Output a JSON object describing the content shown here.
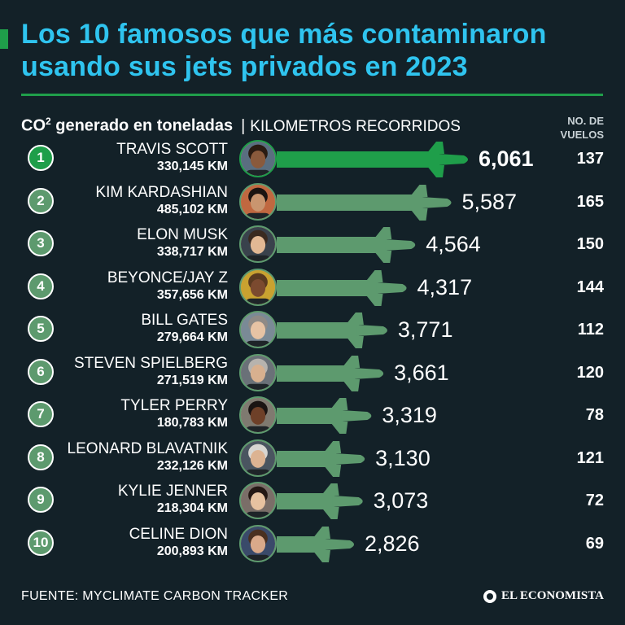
{
  "header": {
    "title": "Los 10 famosos que más contaminaron usando sus jets privados en 2023",
    "subtitle_co2_prefix": "CO",
    "subtitle_co2_sup": "2",
    "subtitle_co2_suffix": " generado en toneladas",
    "subtitle_separator": "|",
    "subtitle_km": "KILOMETROS RECORRIDOS",
    "flights_header_line1": "NO. DE",
    "flights_header_line2": "VUELOS"
  },
  "footer": {
    "source": "FUENTE: MYCLIMATE CARBON TRACKER",
    "logo": "EL ECONOMISTA"
  },
  "colors": {
    "background": "#132128",
    "title": "#2fc4ef",
    "accent_green": "#1f9e4a",
    "bar_green": "#5d9a6e",
    "text": "#ffffff"
  },
  "chart_data": {
    "type": "bar",
    "orientation": "horizontal",
    "title": "Los 10 famosos que más contaminaron usando sus jets privados en 2023",
    "value_label": "CO2 generado en toneladas",
    "secondary_label": "KILOMETROS RECORRIDOS",
    "tertiary_label": "NO. DE VUELOS",
    "xlim": [
      0,
      6061
    ],
    "rows": [
      {
        "rank": "1",
        "name": "TRAVIS SCOTT",
        "km": "330,145 KM",
        "co2": 6061,
        "co2_label": "6,061",
        "flights": "137"
      },
      {
        "rank": "2",
        "name": "KIM KARDASHIAN",
        "km": "485,102 KM",
        "co2": 5587,
        "co2_label": "5,587",
        "flights": "165"
      },
      {
        "rank": "3",
        "name": "ELON MUSK",
        "km": "338,717 KM",
        "co2": 4564,
        "co2_label": "4,564",
        "flights": "150"
      },
      {
        "rank": "4",
        "name": "BEYONCE/JAY Z",
        "km": "357,656 KM",
        "co2": 4317,
        "co2_label": "4,317",
        "flights": "144"
      },
      {
        "rank": "5",
        "name": "BILL GATES",
        "km": "279,664 KM",
        "co2": 3771,
        "co2_label": "3,771",
        "flights": "112"
      },
      {
        "rank": "6",
        "name": "STEVEN SPIELBERG",
        "km": "271,519 KM",
        "co2": 3661,
        "co2_label": "3,661",
        "flights": "120"
      },
      {
        "rank": "7",
        "name": "TYLER PERRY",
        "km": "180,783 KM",
        "co2": 3319,
        "co2_label": "3,319",
        "flights": "78"
      },
      {
        "rank": "8",
        "name": "LEONARD BLAVATNIK",
        "km": "232,126 KM",
        "co2": 3130,
        "co2_label": "3,130",
        "flights": "121"
      },
      {
        "rank": "9",
        "name": "KYLIE JENNER",
        "km": "218,304 KM",
        "co2": 3073,
        "co2_label": "3,073",
        "flights": "72"
      },
      {
        "rank": "10",
        "name": "CELINE DION",
        "km": "200,893 KM",
        "co2": 2826,
        "co2_label": "2,826",
        "flights": "69"
      }
    ]
  }
}
